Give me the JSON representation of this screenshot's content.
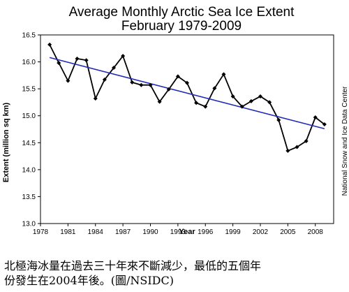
{
  "chart_data": {
    "type": "line",
    "title": "Average Monthly Arctic Sea Ice Extent",
    "subtitle": "February 1979-2009",
    "xlabel": "Year",
    "ylabel": "Extent (million sq km)",
    "xlim": [
      1978,
      2010
    ],
    "ylim": [
      13.0,
      16.5
    ],
    "x_ticks": [
      1978,
      1981,
      1984,
      1987,
      1990,
      1993,
      1996,
      1999,
      2002,
      2005,
      2008
    ],
    "y_ticks": [
      "13.0",
      "13.5",
      "14.0",
      "14.5",
      "15.0",
      "15.5",
      "16.0",
      "16.5"
    ],
    "grid": false,
    "series": [
      {
        "values": [
          16.32,
          15.98,
          15.65,
          16.06,
          16.03,
          15.32,
          15.67,
          15.89,
          16.11,
          15.62,
          15.57,
          15.57,
          15.26,
          15.49,
          15.73,
          15.61,
          15.24,
          15.17,
          15.51,
          15.77,
          15.36,
          15.17,
          15.27,
          15.36,
          15.25,
          14.92,
          14.35,
          14.42,
          14.53,
          14.97,
          14.84
        ],
        "color": "#000000",
        "marker": "diamond"
      },
      {
        "x": [
          1979,
          2009
        ],
        "values": [
          16.08,
          14.76
        ],
        "color": "#1f2bb8",
        "style": "trend"
      }
    ],
    "x": [
      1979,
      1980,
      1981,
      1982,
      1983,
      1984,
      1985,
      1986,
      1987,
      1988,
      1989,
      1990,
      1991,
      1992,
      1993,
      1994,
      1995,
      1996,
      1997,
      1998,
      1999,
      2000,
      2001,
      2002,
      2003,
      2004,
      2005,
      2006,
      2007,
      2008,
      2009
    ],
    "credit": "National Snow and Ice Data Center"
  },
  "caption": {
    "line1": "北極海冰量在過去三十年來不斷減少，最低的五個年",
    "line2": "份發生在2004年後。(圖/NSIDC)"
  }
}
